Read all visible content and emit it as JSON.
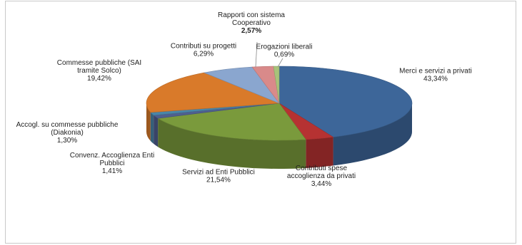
{
  "chart_data": {
    "type": "pie",
    "title": "",
    "slices": [
      {
        "label_lines": [
          "Merci e servizi a privati"
        ],
        "pct_text": "43,34%",
        "value": 43.34,
        "color": "#3d6699",
        "bold": false
      },
      {
        "label_lines": [
          "Contributi spese",
          "accoglienza da privati"
        ],
        "pct_text": "3,44%",
        "value": 3.44,
        "color": "#b63232",
        "bold": false
      },
      {
        "label_lines": [
          "Servizi ad Enti Pubblici"
        ],
        "pct_text": "21,54%",
        "value": 21.54,
        "color": "#7a9a3c",
        "bold": false
      },
      {
        "label_lines": [
          "Convenz. Accoglienza Enti",
          "Pubblici"
        ],
        "pct_text": "1,41%",
        "value": 1.41,
        "color": "#4f5f8f",
        "bold": false
      },
      {
        "label_lines": [
          "Accogl. su commesse pubbliche",
          "(Diakonia)"
        ],
        "pct_text": "1,30%",
        "value": 1.3,
        "color": "#4a86a8",
        "bold": false
      },
      {
        "label_lines": [
          "Commesse pubbliche  (SAI",
          "tramite Solco)"
        ],
        "pct_text": "19,42%",
        "value": 19.42,
        "color": "#d97a2a",
        "bold": false
      },
      {
        "label_lines": [
          "Contributi su progetti"
        ],
        "pct_text": "6,29%",
        "value": 6.29,
        "color": "#8aa6cf",
        "bold": false
      },
      {
        "label_lines": [
          "Rapporti con sistema",
          "Cooperativo"
        ],
        "pct_text": "2,57%",
        "value": 2.57,
        "color": "#d98a8a",
        "bold": true
      },
      {
        "label_lines": [
          "Erogazioni liberali"
        ],
        "pct_text": "0,69%",
        "value": 0.69,
        "color": "#a8c27a",
        "bold": false
      }
    ]
  }
}
